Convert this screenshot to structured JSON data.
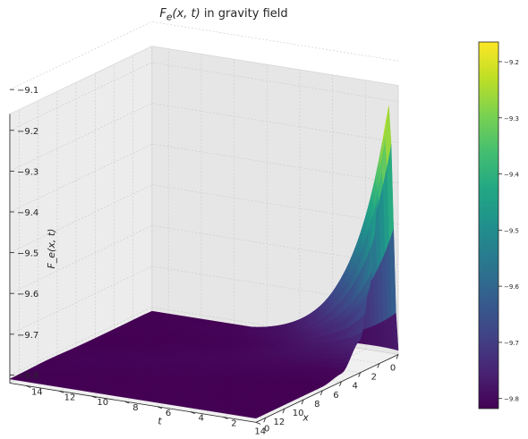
{
  "chart_data": {
    "type": "surface3d",
    "title": "F_e(x, t) in gravity field",
    "title_math": "F",
    "title_sub": "e",
    "title_args": "(x, t)",
    "title_rest": " in gravity field",
    "xlabel": "x",
    "ylabel": "t",
    "zlabel": "F_e(x, t)",
    "colormap": "viridis",
    "x_range": [
      0,
      15
    ],
    "t_range": [
      0,
      15
    ],
    "z_range": [
      -9.82,
      -9.16
    ],
    "x_ticks": [
      0,
      2,
      4,
      6,
      8,
      10,
      12,
      14
    ],
    "t_ticks": [
      0,
      2,
      4,
      6,
      8,
      10,
      12,
      14
    ],
    "z_ticks": [
      -9.8,
      -9.7,
      -9.6,
      -9.5,
      -9.4,
      -9.3,
      -9.2,
      -9.1
    ],
    "z_tick_labels": [
      "−9.8",
      "−9.7",
      "−9.6",
      "−9.5",
      "−9.4",
      "−9.3",
      "−9.2",
      "−9.1"
    ],
    "colorbar_ticks": [
      -9.8,
      -9.7,
      -9.6,
      -9.5,
      -9.4,
      -9.3,
      -9.2
    ],
    "colorbar_tick_labels": [
      "−9.8",
      "−9.7",
      "−9.6",
      "−9.5",
      "−9.4",
      "−9.3",
      "−9.2"
    ],
    "surface_samples": {
      "x": [
        0,
        1,
        2,
        3,
        4,
        6,
        8,
        15
      ],
      "F_at_t0": [
        -9.81,
        -9.2,
        -9.38,
        -9.62,
        -9.74,
        -9.8,
        -9.81,
        -9.81
      ],
      "min": -9.81,
      "max": -9.18
    },
    "grid": true,
    "colorbar_position": "right"
  }
}
